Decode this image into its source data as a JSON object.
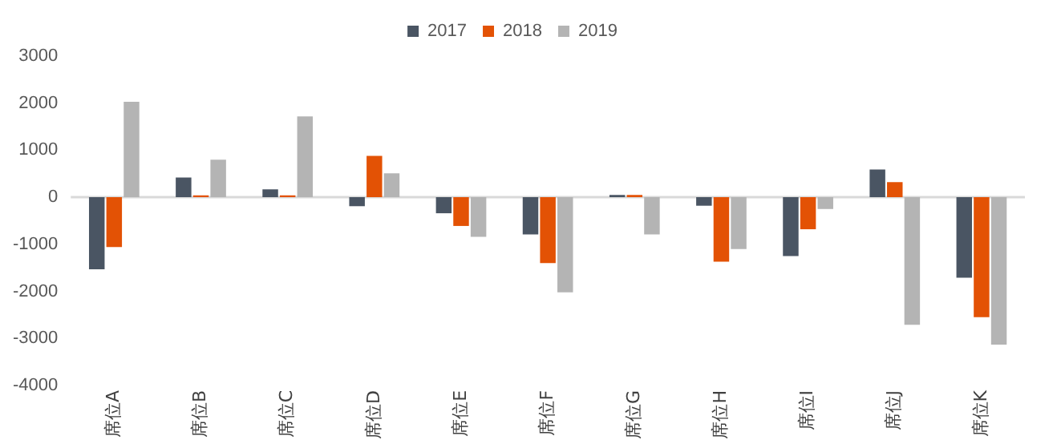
{
  "chart_data": {
    "type": "bar",
    "categories": [
      "席位A",
      "席位B",
      "席位C",
      "席位D",
      "席位E",
      "席位F",
      "席位G",
      "席位H",
      "席位I",
      "席位J",
      "席位K"
    ],
    "series": [
      {
        "name": "2017",
        "color": "#4a5563",
        "values": [
          -1530,
          420,
          170,
          -190,
          -340,
          -790,
          50,
          -180,
          -1250,
          590,
          -1710
        ]
      },
      {
        "name": "2018",
        "color": "#e35205",
        "values": [
          -1060,
          40,
          40,
          880,
          -610,
          -1400,
          50,
          -1370,
          -680,
          320,
          -2550
        ]
      },
      {
        "name": "2019",
        "color": "#b4b4b4",
        "values": [
          2030,
          800,
          1720,
          510,
          -840,
          -2020,
          -790,
          -1100,
          -250,
          -2710,
          -3130
        ]
      }
    ],
    "ylim": [
      -4000,
      3000
    ],
    "yticks": [
      -4000,
      -3000,
      -2000,
      -1000,
      0,
      1000,
      2000,
      3000
    ],
    "legend": "top"
  }
}
